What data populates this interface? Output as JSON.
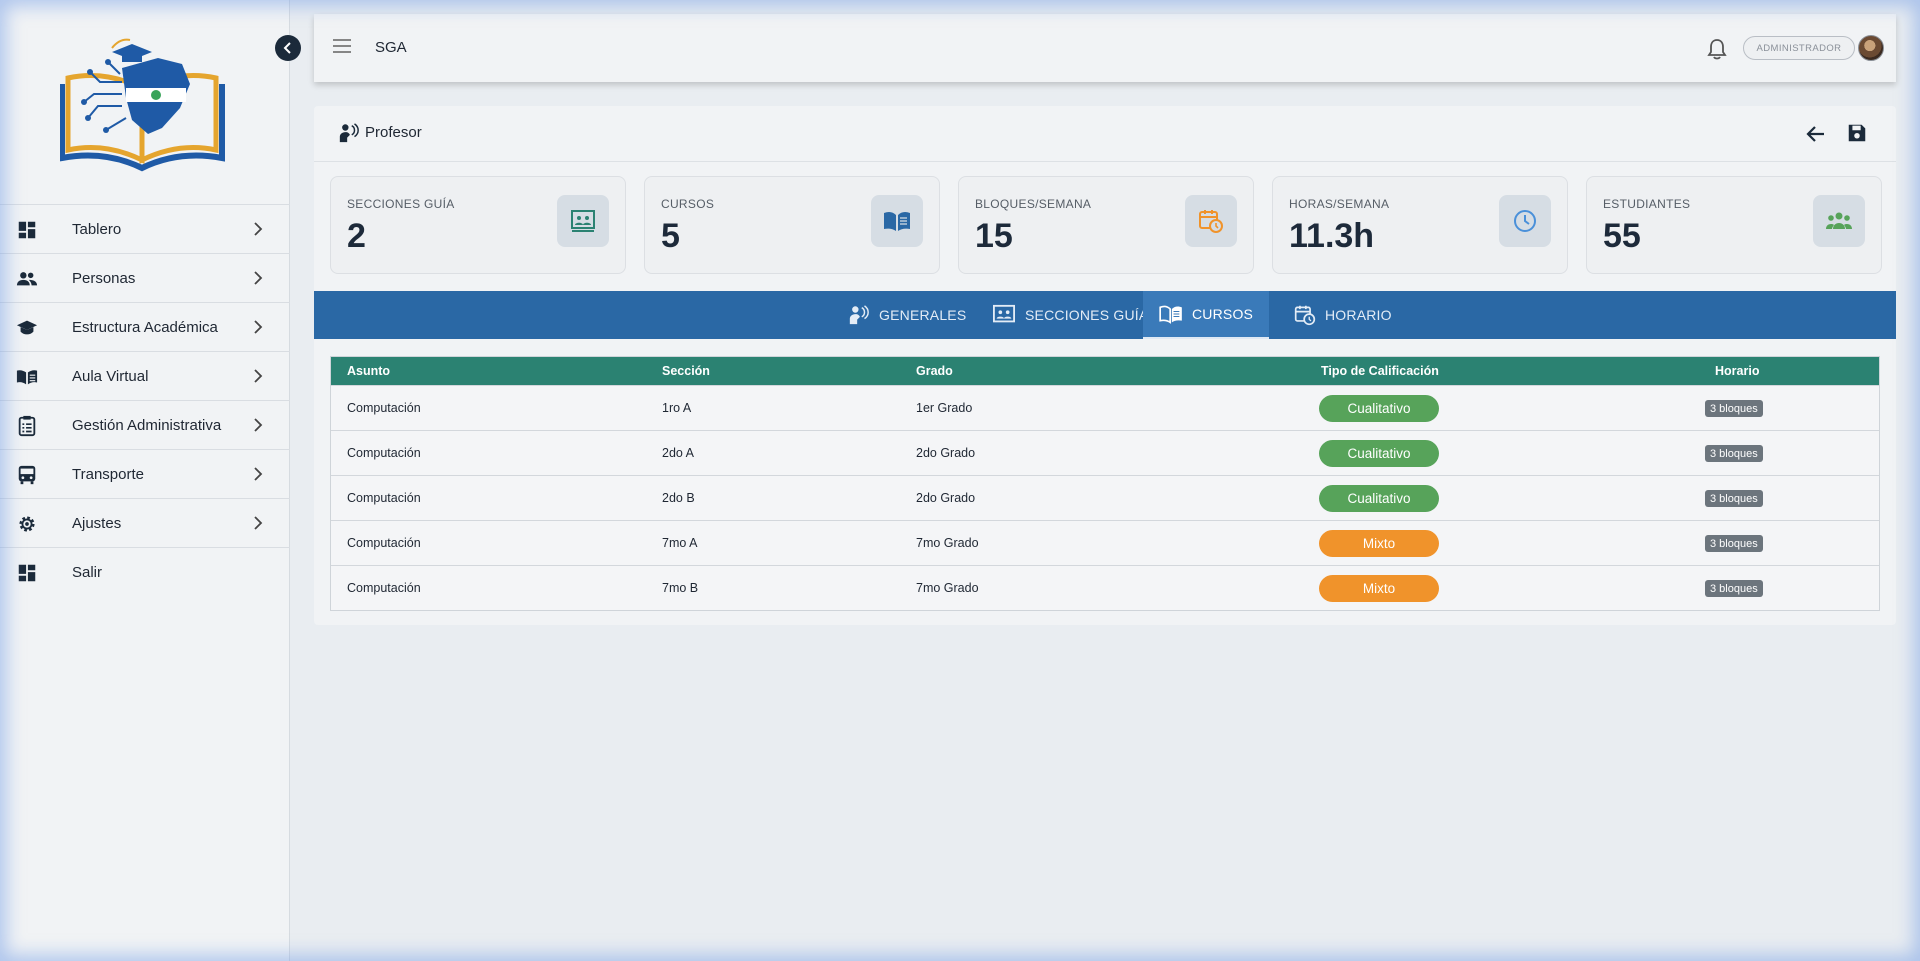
{
  "app": {
    "title": "SGA"
  },
  "user": {
    "role": "ADMINISTRADOR"
  },
  "sidebar": {
    "items": [
      {
        "label": "Tablero",
        "icon": "dashboard-icon",
        "has_children": true
      },
      {
        "label": "Personas",
        "icon": "people-icon",
        "has_children": true
      },
      {
        "label": "Estructura Académica",
        "icon": "graduation-cap-icon",
        "has_children": true
      },
      {
        "label": "Aula Virtual",
        "icon": "book-icon",
        "has_children": true
      },
      {
        "label": "Gestión Administrativa",
        "icon": "clipboard-icon",
        "has_children": true
      },
      {
        "label": "Transporte",
        "icon": "bus-icon",
        "has_children": true
      },
      {
        "label": "Ajustes",
        "icon": "gear-icon",
        "has_children": true
      },
      {
        "label": "Salir",
        "icon": "dashboard-icon",
        "has_children": false
      }
    ]
  },
  "page": {
    "title": "Profesor"
  },
  "stats": [
    {
      "label": "SECCIONES GUÍA",
      "value": "2",
      "icon": "presentation-icon",
      "color": "#2b8272"
    },
    {
      "label": "CURSOS",
      "value": "5",
      "icon": "open-book-icon",
      "color": "#2a68a5"
    },
    {
      "label": "BLOQUES/SEMANA",
      "value": "15",
      "icon": "calendar-clock-icon",
      "color": "#f0932b"
    },
    {
      "label": "HORAS/SEMANA",
      "value": "11.3h",
      "icon": "clock-icon",
      "color": "#4a90d9"
    },
    {
      "label": "ESTUDIANTES",
      "value": "55",
      "icon": "group-icon",
      "color": "#57a35a"
    }
  ],
  "tabs": [
    {
      "label": "GENERALES",
      "icon": "teacher-icon",
      "active": false
    },
    {
      "label": "SECCIONES GUÍA",
      "icon": "presentation-icon",
      "active": false
    },
    {
      "label": "CURSOS",
      "icon": "open-book-icon",
      "active": true
    },
    {
      "label": "HORARIO",
      "icon": "calendar-clock-icon",
      "active": false
    }
  ],
  "table": {
    "headers": [
      "Asunto",
      "Sección",
      "Grado",
      "Tipo de Calificación",
      "Horario"
    ],
    "rows": [
      {
        "asunto": "Computación",
        "seccion": "1ro A",
        "grado": "1er Grado",
        "tipo": "Cualitativo",
        "horario": "3 bloques"
      },
      {
        "asunto": "Computación",
        "seccion": "2do A",
        "grado": "2do Grado",
        "tipo": "Cualitativo",
        "horario": "3 bloques"
      },
      {
        "asunto": "Computación",
        "seccion": "2do B",
        "grado": "2do Grado",
        "tipo": "Cualitativo",
        "horario": "3 bloques"
      },
      {
        "asunto": "Computación",
        "seccion": "7mo A",
        "grado": "7mo Grado",
        "tipo": "Mixto",
        "horario": "3 bloques"
      },
      {
        "asunto": "Computación",
        "seccion": "7mo B",
        "grado": "7mo Grado",
        "tipo": "Mixto",
        "horario": "3 bloques"
      }
    ]
  },
  "colors": {
    "tab_bar": "#2a68a5",
    "table_header": "#2b8272",
    "cualitativo": "#57a35a",
    "mixto": "#f0932b"
  }
}
